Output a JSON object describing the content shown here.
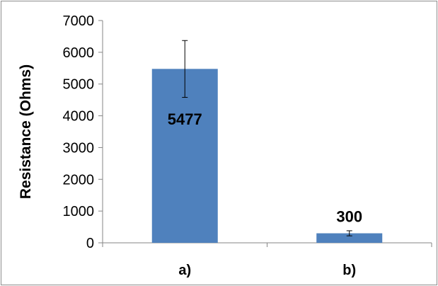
{
  "chart_data": {
    "type": "bar",
    "categories": [
      "a)",
      "b)"
    ],
    "values": [
      5477,
      300
    ],
    "error_bars": [
      {
        "low": 4580,
        "high": 6370
      },
      {
        "low": 220,
        "high": 380
      }
    ],
    "data_labels": [
      "5477",
      "300"
    ],
    "title": "",
    "xlabel": "",
    "ylabel": "Resistance (Ohms)",
    "ylim": [
      0,
      7000
    ],
    "yticks": [
      0,
      1000,
      2000,
      3000,
      4000,
      5000,
      6000,
      7000
    ],
    "ytick_labels": [
      "0",
      "1000",
      "2000",
      "3000",
      "4000",
      "5000",
      "6000",
      "7000"
    ],
    "grid": false,
    "legend": "none",
    "colors": {
      "bar": "#4f81bd",
      "axis": "#868686",
      "text": "#000000"
    }
  }
}
